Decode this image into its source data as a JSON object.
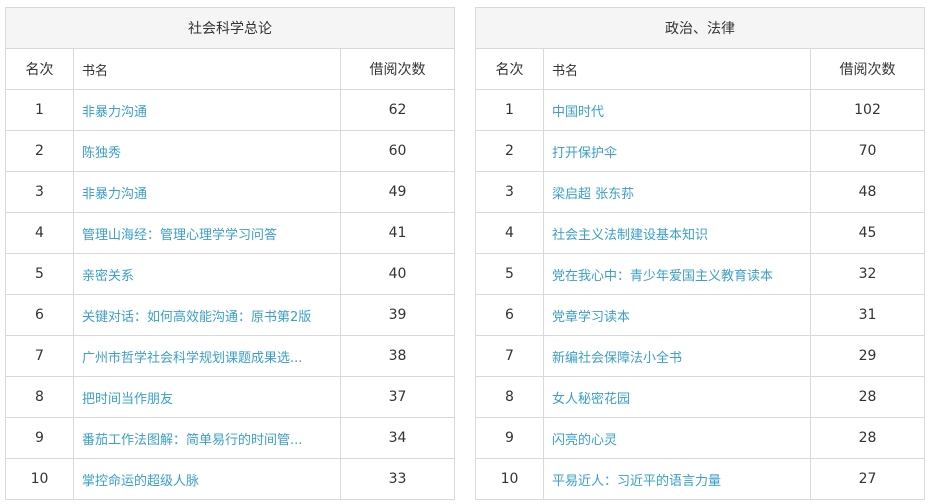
{
  "columns": {
    "rank": "名次",
    "name": "书名",
    "count": "借阅次数"
  },
  "tables": [
    {
      "title": "社会科学总论",
      "rows": [
        {
          "rank": "1",
          "name": "非暴力沟通",
          "count": "62"
        },
        {
          "rank": "2",
          "name": "陈独秀",
          "count": "60"
        },
        {
          "rank": "3",
          "name": "非暴力沟通",
          "count": "49"
        },
        {
          "rank": "4",
          "name": "管理山海经：管理心理学学习问答",
          "count": "41"
        },
        {
          "rank": "5",
          "name": "亲密关系",
          "count": "40"
        },
        {
          "rank": "6",
          "name": "关键对话：如何高效能沟通：原书第2版",
          "count": "39"
        },
        {
          "rank": "7",
          "name": "广州市哲学社会科学规划课题成果选...",
          "count": "38"
        },
        {
          "rank": "8",
          "name": "把时间当作朋友",
          "count": "37"
        },
        {
          "rank": "9",
          "name": "番茄工作法图解：简单易行的时间管...",
          "count": "34"
        },
        {
          "rank": "10",
          "name": "掌控命运的超级人脉",
          "count": "33"
        }
      ]
    },
    {
      "title": "政治、法律",
      "rows": [
        {
          "rank": "1",
          "name": "中国时代",
          "count": "102"
        },
        {
          "rank": "2",
          "name": "打开保护伞",
          "count": "70"
        },
        {
          "rank": "3",
          "name": "梁启超 张东荪",
          "count": "48"
        },
        {
          "rank": "4",
          "name": "社会主义法制建设基本知识",
          "count": "45"
        },
        {
          "rank": "5",
          "name": "党在我心中：青少年爱国主义教育读本",
          "count": "32"
        },
        {
          "rank": "6",
          "name": "党章学习读本",
          "count": "31"
        },
        {
          "rank": "7",
          "name": "新编社会保障法小全书",
          "count": "29"
        },
        {
          "rank": "8",
          "name": "女人秘密花园",
          "count": "28"
        },
        {
          "rank": "9",
          "name": "闪亮的心灵",
          "count": "28"
        },
        {
          "rank": "10",
          "name": "平易近人：习近平的语言力量",
          "count": "27"
        }
      ]
    }
  ]
}
